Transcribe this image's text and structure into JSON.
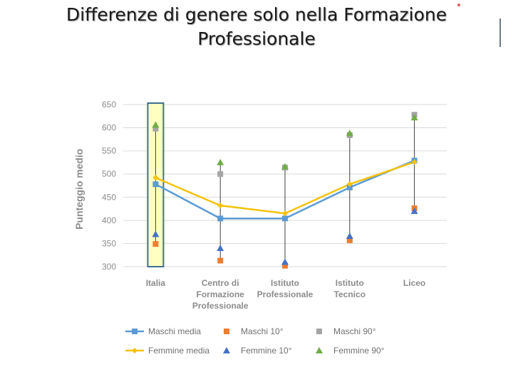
{
  "title": {
    "line1": "Differenze di genere solo nella Formazione",
    "line2": "Professionale"
  },
  "chart_data": {
    "type": "line",
    "ylabel": "Punteggio medio",
    "xlabel": "",
    "ylim": [
      300,
      650
    ],
    "yticks": [
      300,
      350,
      400,
      450,
      500,
      550,
      600,
      650
    ],
    "grid": true,
    "legend_position": "bottom",
    "categories": [
      [
        "Italia"
      ],
      [
        "Centro di",
        "Formazione",
        "Professionale"
      ],
      [
        "Istituto",
        "Professionale"
      ],
      [
        "Istituto",
        "Tecnico"
      ],
      [
        "Liceo"
      ]
    ],
    "highlight_category": 0,
    "series": [
      {
        "name": "Maschi media",
        "kind": "line",
        "color": "#5b9bd5",
        "values": [
          478,
          404,
          404,
          471,
          529
        ]
      },
      {
        "name": "Maschi 10°",
        "kind": "square",
        "color": "#ed7d31",
        "values": [
          349,
          313,
          302,
          357,
          426
        ]
      },
      {
        "name": "Maschi 90°",
        "kind": "square",
        "color": "#a5a5a5",
        "values": [
          598,
          500,
          514,
          584,
          628
        ]
      },
      {
        "name": "Femmine media",
        "kind": "line",
        "color": "#f5c20a",
        "values": [
          492,
          432,
          415,
          478,
          526
        ]
      },
      {
        "name": "Femmine 10°",
        "kind": "triangle",
        "color": "#4472c4",
        "values": [
          370,
          340,
          310,
          366,
          420
        ]
      },
      {
        "name": "Femmine 90°",
        "kind": "triangle",
        "color": "#70ad47",
        "values": [
          606,
          525,
          516,
          588,
          622
        ]
      }
    ]
  }
}
